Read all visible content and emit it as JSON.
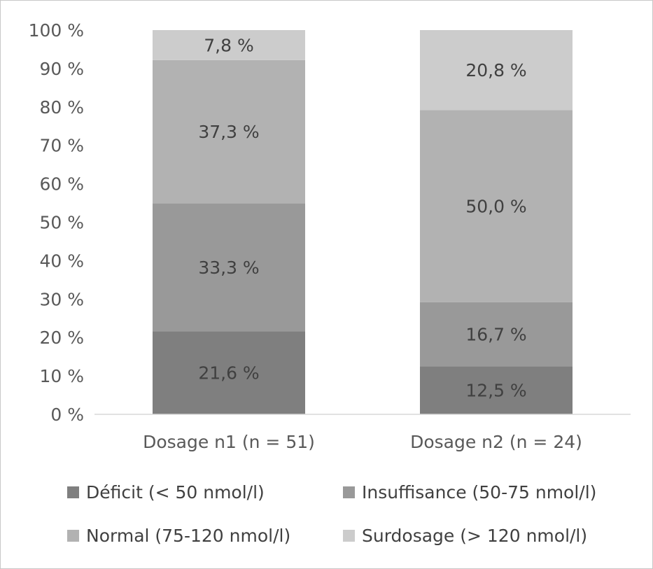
{
  "chart_data": {
    "type": "bar",
    "stacked": true,
    "categories": [
      "Dosage n1 (n = 51)",
      "Dosage n2 (n = 24)"
    ],
    "series": [
      {
        "name": "Déficit (< 50 nmol/l)",
        "values": [
          21.6,
          12.5
        ],
        "labels": [
          "21,6 %",
          "12,5 %"
        ],
        "color": "#7f7f7f"
      },
      {
        "name": "Insuffisance (50-75 nmol/l)",
        "values": [
          33.3,
          16.7
        ],
        "labels": [
          "33,3 %",
          "16,7 %"
        ],
        "color": "#999999"
      },
      {
        "name": "Normal (75-120 nmol/l)",
        "values": [
          37.3,
          50.0
        ],
        "labels": [
          "37,3 %",
          "50,0 %"
        ],
        "color": "#b2b2b2"
      },
      {
        "name": "Surdosage (> 120 nmol/l)",
        "values": [
          7.8,
          20.8
        ],
        "labels": [
          "7,8 %",
          "20,8 %"
        ],
        "color": "#cccccc"
      }
    ],
    "ylim": [
      0,
      100
    ],
    "yticks": [
      0,
      10,
      20,
      30,
      40,
      50,
      60,
      70,
      80,
      90,
      100
    ],
    "ytick_labels": [
      "0 %",
      "10 %",
      "20 %",
      "30 %",
      "40 %",
      "50 %",
      "60 %",
      "70 %",
      "80 %",
      "90 %",
      "100 %"
    ],
    "grid": false,
    "legend_position": "bottom"
  }
}
